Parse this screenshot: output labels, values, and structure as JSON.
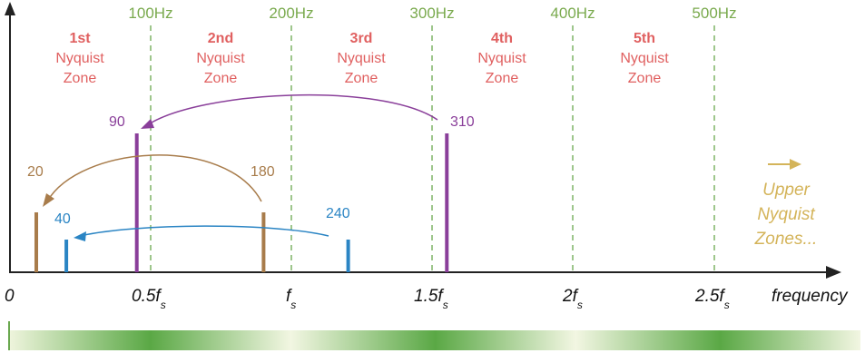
{
  "frequency_labels": [
    "100Hz",
    "200Hz",
    "300Hz",
    "400Hz",
    "500Hz"
  ],
  "zones": [
    {
      "num": "1st",
      "line1": "Nyquist",
      "line2": "Zone"
    },
    {
      "num": "2nd",
      "line1": "Nyquist",
      "line2": "Zone"
    },
    {
      "num": "3rd",
      "line1": "Nyquist",
      "line2": "Zone"
    },
    {
      "num": "4th",
      "line1": "Nyquist",
      "line2": "Zone"
    },
    {
      "num": "5th",
      "line1": "Nyquist",
      "line2": "Zone"
    }
  ],
  "axis": {
    "xlabel": "frequency",
    "ticks": [
      {
        "main": "0",
        "sub": ""
      },
      {
        "main": "0.5f",
        "sub": "s"
      },
      {
        "main": "f",
        "sub": "s"
      },
      {
        "main": "1.5f",
        "sub": "s"
      },
      {
        "main": "2f",
        "sub": "s"
      },
      {
        "main": "2.5f",
        "sub": "s"
      }
    ]
  },
  "signals": [
    {
      "label": "20",
      "freq_hz": 20,
      "role": "alias",
      "color": "#a87c4b"
    },
    {
      "label": "180",
      "freq_hz": 180,
      "role": "source",
      "color": "#a87c4b"
    },
    {
      "label": "40",
      "freq_hz": 40,
      "role": "alias",
      "color": "#2b85c4"
    },
    {
      "label": "240",
      "freq_hz": 240,
      "role": "source",
      "color": "#2b85c4"
    },
    {
      "label": "90",
      "freq_hz": 90,
      "role": "alias",
      "color": "#8a3f9a"
    },
    {
      "label": "310",
      "freq_hz": 310,
      "role": "source",
      "color": "#8a3f9a"
    }
  ],
  "upper_note": [
    "Upper",
    "Nyquist",
    "Zones..."
  ],
  "colors": {
    "zone_text": "#e06060",
    "freq_text": "#7aaa4e",
    "divider": "#6aa84f",
    "axis": "#222222",
    "upper_note": "#d4b45a"
  }
}
